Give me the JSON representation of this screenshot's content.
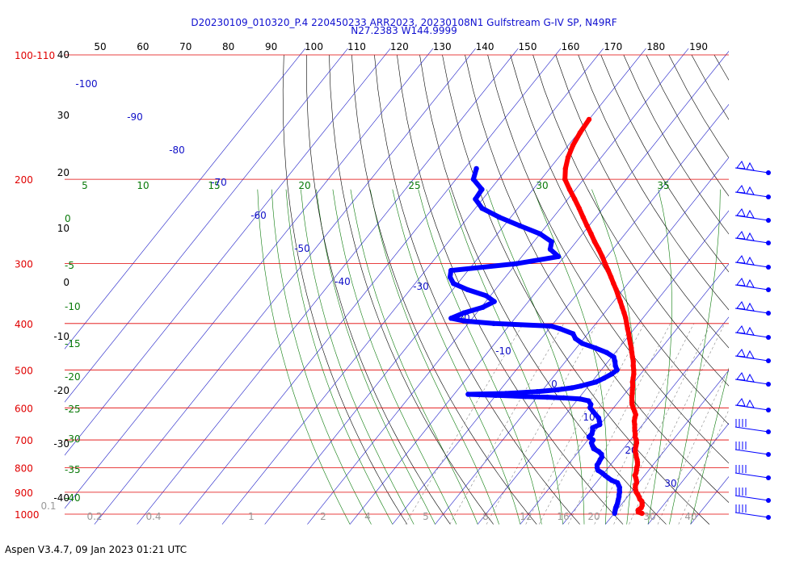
{
  "header": {
    "title_line1": "D20230109_010320_P.4 220450233 ARR2023, 20230108N1 Gulfstream G-IV SP, N49RF",
    "title_line2": "N27.2383 W144.9999"
  },
  "footer": {
    "text": "Aspen V3.4.7, 09 Jan 2023  01:21 UTC"
  },
  "chart_data": {
    "type": "skew-t log-p sounding",
    "pressure_axis": {
      "range_hpa": [
        100,
        1000
      ],
      "scale": "log",
      "red_labels": [
        "100-110",
        "200",
        "300",
        "400",
        "500",
        "600",
        "700",
        "800",
        "900",
        "1000"
      ],
      "red_levels_hpa": [
        110,
        200,
        300,
        400,
        500,
        600,
        700,
        800,
        900,
        1000
      ]
    },
    "temperature_top_labels": [
      "50",
      "60",
      "70",
      "80",
      "90",
      "100",
      "110",
      "120",
      "130",
      "140",
      "150",
      "160",
      "170",
      "180",
      "190"
    ],
    "altitude_labels_left": [
      "40",
      "30",
      "20",
      "10",
      "0",
      "-10",
      "-20",
      "-30",
      "-40"
    ],
    "isotherm_labels": [
      "-100",
      "-90",
      "-80",
      "-70",
      "-60",
      "-50",
      "-40",
      "-30",
      "-20",
      "-10",
      "0",
      "10",
      "20",
      "30"
    ],
    "mixing_ratio_labels_top": [
      "5",
      "10",
      "15",
      "20",
      "25",
      "30",
      "35"
    ],
    "green_left_labels": [
      "0",
      "-5",
      "-10",
      "-15",
      "-20",
      "-25",
      "-30",
      "-35",
      "-40"
    ],
    "bottom_gray_labels": [
      "0.1",
      "0.2",
      "0.4",
      "1",
      "2",
      "4",
      "5",
      "8",
      "12",
      "16",
      "20",
      "30",
      "40"
    ],
    "series": [
      {
        "name": "temperature",
        "color": "#ff0000",
        "points": [
          [
            996,
            26.5
          ],
          [
            990,
            25.4
          ],
          [
            980,
            25.0
          ],
          [
            970,
            25.3
          ],
          [
            960,
            25.1
          ],
          [
            950,
            24.7
          ],
          [
            940,
            24.2
          ],
          [
            930,
            23.3
          ],
          [
            920,
            22.7
          ],
          [
            910,
            22.0
          ],
          [
            900,
            21.2
          ],
          [
            890,
            20.6
          ],
          [
            880,
            20.1
          ],
          [
            870,
            19.7
          ],
          [
            860,
            19.5
          ],
          [
            850,
            19.0
          ],
          [
            840,
            18.4
          ],
          [
            830,
            17.7
          ],
          [
            820,
            17.5
          ],
          [
            810,
            17.1
          ],
          [
            800,
            16.7
          ],
          [
            790,
            16.4
          ],
          [
            780,
            15.9
          ],
          [
            770,
            15.3
          ],
          [
            760,
            14.6
          ],
          [
            750,
            14.0
          ],
          [
            740,
            13.3
          ],
          [
            730,
            12.8
          ],
          [
            720,
            12.4
          ],
          [
            710,
            12.0
          ],
          [
            700,
            11.4
          ],
          [
            690,
            10.5
          ],
          [
            680,
            10.0
          ],
          [
            670,
            9.3
          ],
          [
            660,
            8.7
          ],
          [
            650,
            8.1
          ],
          [
            640,
            7.4
          ],
          [
            630,
            6.9
          ],
          [
            620,
            6.5
          ],
          [
            610,
            5.6
          ],
          [
            600,
            4.6
          ],
          [
            590,
            3.7
          ],
          [
            580,
            3.0
          ],
          [
            570,
            2.3
          ],
          [
            560,
            1.7
          ],
          [
            550,
            1.0
          ],
          [
            540,
            0.4
          ],
          [
            530,
            -0.4
          ],
          [
            520,
            -1.0
          ],
          [
            510,
            -1.6
          ],
          [
            500,
            -2.4
          ],
          [
            490,
            -3.3
          ],
          [
            480,
            -4.1
          ],
          [
            470,
            -5.1
          ],
          [
            460,
            -6.1
          ],
          [
            450,
            -7.1
          ],
          [
            440,
            -8.2
          ],
          [
            430,
            -9.3
          ],
          [
            420,
            -10.4
          ],
          [
            410,
            -11.6
          ],
          [
            400,
            -12.8
          ],
          [
            390,
            -14.0
          ],
          [
            380,
            -15.4
          ],
          [
            370,
            -16.9
          ],
          [
            360,
            -18.4
          ],
          [
            350,
            -20.0
          ],
          [
            340,
            -21.6
          ],
          [
            330,
            -23.4
          ],
          [
            320,
            -25.2
          ],
          [
            310,
            -27.1
          ],
          [
            300,
            -29.1
          ],
          [
            290,
            -31.1
          ],
          [
            280,
            -33.3
          ],
          [
            270,
            -35.7
          ],
          [
            260,
            -38.0
          ],
          [
            250,
            -40.5
          ],
          [
            240,
            -43.0
          ],
          [
            230,
            -45.6
          ],
          [
            220,
            -48.4
          ],
          [
            210,
            -51.4
          ],
          [
            200,
            -54.4
          ],
          [
            190,
            -56.3
          ],
          [
            180,
            -57.8
          ],
          [
            170,
            -58.9
          ],
          [
            160,
            -59.6
          ],
          [
            150,
            -60.0
          ]
        ]
      },
      {
        "name": "dewpoint",
        "color": "#0000ff",
        "points": [
          [
            996,
            20.1
          ],
          [
            990,
            19.9
          ],
          [
            980,
            19.6
          ],
          [
            970,
            19.3
          ],
          [
            960,
            19.1
          ],
          [
            950,
            18.9
          ],
          [
            940,
            18.6
          ],
          [
            930,
            18.3
          ],
          [
            920,
            18.0
          ],
          [
            910,
            17.6
          ],
          [
            900,
            17.3
          ],
          [
            890,
            16.8
          ],
          [
            880,
            16.4
          ],
          [
            870,
            15.7
          ],
          [
            860,
            15.0
          ],
          [
            850,
            13.2
          ],
          [
            840,
            11.9
          ],
          [
            830,
            10.7
          ],
          [
            820,
            9.5
          ],
          [
            810,
            8.1
          ],
          [
            800,
            7.4
          ],
          [
            790,
            6.9
          ],
          [
            780,
            6.8
          ],
          [
            770,
            6.6
          ],
          [
            760,
            6.5
          ],
          [
            750,
            5.9
          ],
          [
            740,
            4.7
          ],
          [
            730,
            3.0
          ],
          [
            720,
            2.2
          ],
          [
            710,
            1.4
          ],
          [
            700,
            1.2
          ],
          [
            690,
            -0.3
          ],
          [
            680,
            -0.2
          ],
          [
            670,
            -0.6
          ],
          [
            660,
            -1.2
          ],
          [
            650,
            -0.1
          ],
          [
            640,
            -0.8
          ],
          [
            630,
            -1.6
          ],
          [
            620,
            -2.9
          ],
          [
            610,
            -4.2
          ],
          [
            600,
            -5.5
          ],
          [
            590,
            -6.0
          ],
          [
            580,
            -7.2
          ],
          [
            575,
            -9.5
          ],
          [
            572,
            -13.6
          ],
          [
            570,
            -17.6
          ],
          [
            568,
            -22.9
          ],
          [
            565,
            -30.0
          ],
          [
            562,
            -36.7
          ],
          [
            560,
            -28.0
          ],
          [
            555,
            -21.0
          ],
          [
            550,
            -16.5
          ],
          [
            545,
            -13.5
          ],
          [
            540,
            -11.8
          ],
          [
            530,
            -9.0
          ],
          [
            520,
            -7.8
          ],
          [
            510,
            -6.8
          ],
          [
            500,
            -6.3
          ],
          [
            490,
            -7.5
          ],
          [
            480,
            -8.4
          ],
          [
            470,
            -9.5
          ],
          [
            460,
            -12.0
          ],
          [
            450,
            -15.5
          ],
          [
            440,
            -19.5
          ],
          [
            430,
            -22.0
          ],
          [
            420,
            -23.5
          ],
          [
            410,
            -27.5
          ],
          [
            405,
            -30.0
          ],
          [
            400,
            -44.0
          ],
          [
            395,
            -51.5
          ],
          [
            390,
            -55.0
          ],
          [
            380,
            -53.0
          ],
          [
            370,
            -49.6
          ],
          [
            360,
            -48.0
          ],
          [
            350,
            -51.0
          ],
          [
            340,
            -56.5
          ],
          [
            330,
            -61.0
          ],
          [
            320,
            -63.0
          ],
          [
            310,
            -64.0
          ],
          [
            300,
            -49.8
          ],
          [
            290,
            -41.4
          ],
          [
            280,
            -44.7
          ],
          [
            270,
            -45.8
          ],
          [
            260,
            -50.0
          ],
          [
            250,
            -56.3
          ],
          [
            240,
            -62.7
          ],
          [
            230,
            -68.4
          ],
          [
            220,
            -71.7
          ],
          [
            210,
            -72.0
          ],
          [
            200,
            -75.9
          ],
          [
            190,
            -77.2
          ]
        ]
      }
    ]
  }
}
